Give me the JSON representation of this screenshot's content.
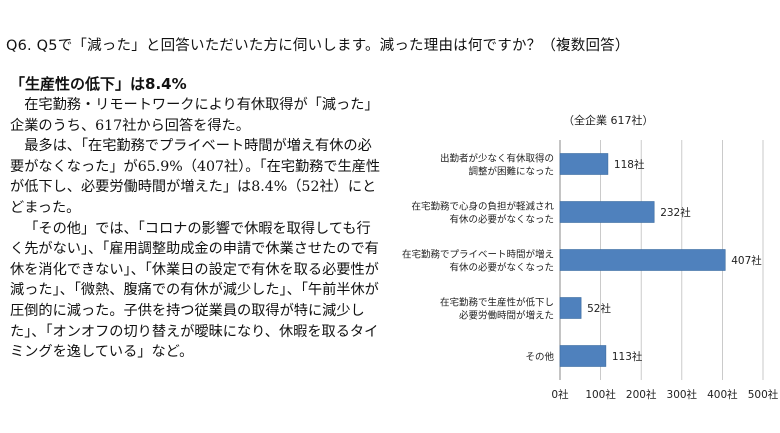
{
  "question": "Q6. Q5で「減った」と回答いただいた方に伺いします。減った理由は何ですか？（複数回答）",
  "article": {
    "heading": "「生産性の低下」は8.4%",
    "paragraphs": [
      "在宅勤務・リモートワークにより有休取得が「減った」企業のうち、617社から回答を得た。",
      "最多は、「在宅勤務でプライベート時間が増え有休の必要がなくなった」が65.9%（407社）。「在宅勤務で生産性が低下し、必要労働時間が増えた」は8.4%（52社）にとどまった。",
      "「その他」では、「コロナの影響で休暇を取得しても行く先がない」、「雇用調整助成金の申請で休業させたので有休を消化できない」、「休業日の設定で有休を取る必要性が減った」、「微熱、腹痛での有休が減少した」、「午前半休が圧倒的に減った。子供を持つ従業員の取得が特に減少した」、「オンオフの切り替えが曖昧になり、休暇を取るタイミングを逸している」など。"
    ]
  },
  "chart_data": {
    "type": "bar",
    "orientation": "horizontal",
    "title": "（全企業 617社）",
    "categories": [
      [
        "出勤者が少なく有休取得の",
        "調整が困難になった"
      ],
      [
        "在宅勤務で心身の負担が軽減され",
        "有休の必要がなくなった"
      ],
      [
        "在宅勤務でプライベート時間が増え",
        "有休の必要がなくなった"
      ],
      [
        "在宅勤務で生産性が低下し",
        "必要労働時間が増えた"
      ],
      [
        "その他"
      ]
    ],
    "values": [
      118,
      232,
      407,
      52,
      113
    ],
    "data_labels": [
      "118社",
      "232社",
      "407社",
      "52社",
      "113社"
    ],
    "xlim": [
      0,
      500
    ],
    "ticks": [
      0,
      100,
      200,
      300,
      400,
      500
    ],
    "tick_labels": [
      "0社",
      "100社",
      "200社",
      "300社",
      "400社",
      "500社"
    ],
    "grid": true,
    "bar_color": "#4f81bd"
  }
}
